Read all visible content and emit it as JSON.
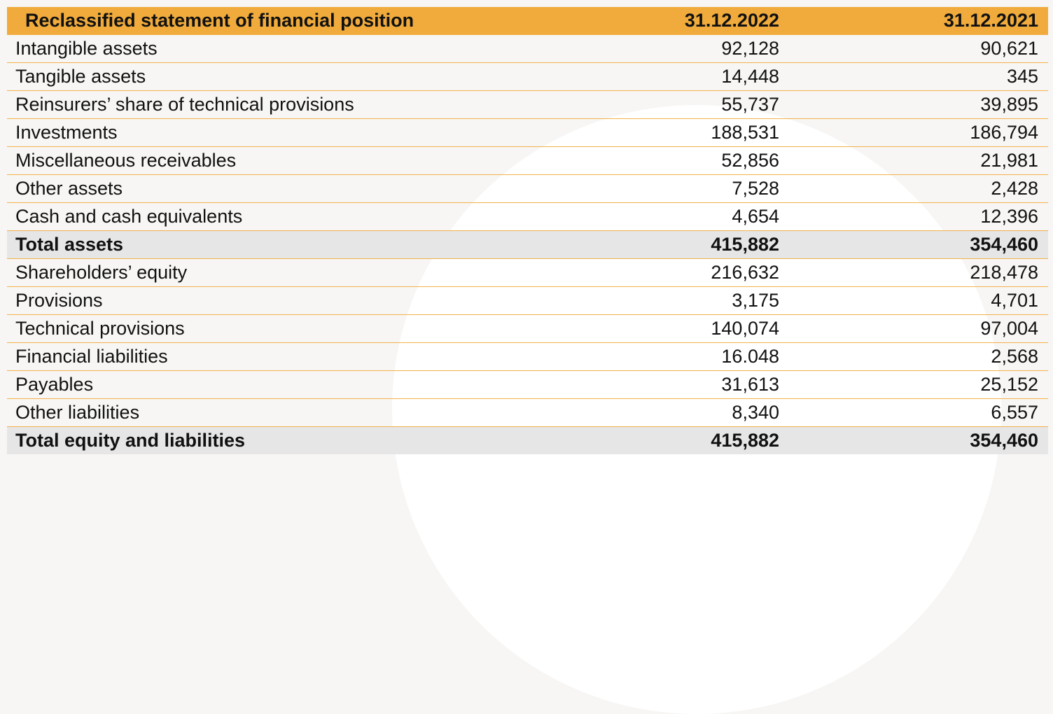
{
  "table": {
    "headers": [
      "Reclassified statement of financial position",
      "31.12.2022",
      "31.12.2021"
    ],
    "rows": [
      {
        "label": "Intangible assets",
        "v2022": "92,128",
        "v2021": "90,621",
        "total": false
      },
      {
        "label": "Tangible assets",
        "v2022": "14,448",
        "v2021": "345",
        "total": false
      },
      {
        "label": "Reinsurers’ share of technical provisions",
        "v2022": "55,737",
        "v2021": "39,895",
        "total": false
      },
      {
        "label": "Investments",
        "v2022": "188,531",
        "v2021": "186,794",
        "total": false
      },
      {
        "label": "Miscellaneous receivables",
        "v2022": "52,856",
        "v2021": "21,981",
        "total": false
      },
      {
        "label": "Other assets",
        "v2022": "7,528",
        "v2021": "2,428",
        "total": false
      },
      {
        "label": "Cash and cash equivalents",
        "v2022": "4,654",
        "v2021": "12,396",
        "total": false
      },
      {
        "label": "Total assets",
        "v2022": "415,882",
        "v2021": "354,460",
        "total": true
      },
      {
        "label": "Shareholders’ equity",
        "v2022": "216,632",
        "v2021": "218,478",
        "total": false
      },
      {
        "label": "Provisions",
        "v2022": "3,175",
        "v2021": "4,701",
        "total": false
      },
      {
        "label": "Technical provisions",
        "v2022": "140,074",
        "v2021": "97,004",
        "total": false
      },
      {
        "label": "Financial liabilities",
        "v2022": "16.048",
        "v2021": "2,568",
        "total": false
      },
      {
        "label": "Payables",
        "v2022": "31,613",
        "v2021": "25,152",
        "total": false
      },
      {
        "label": "Other liabilities",
        "v2022": "8,340",
        "v2021": "6,557",
        "total": false
      },
      {
        "label": "Total equity and liabilities",
        "v2022": "415,882",
        "v2021": "354,460",
        "total": true
      }
    ]
  },
  "colors": {
    "header": "#f0ab3c",
    "total_row": "#e6e6e6",
    "row_border": "#f3b04a"
  }
}
